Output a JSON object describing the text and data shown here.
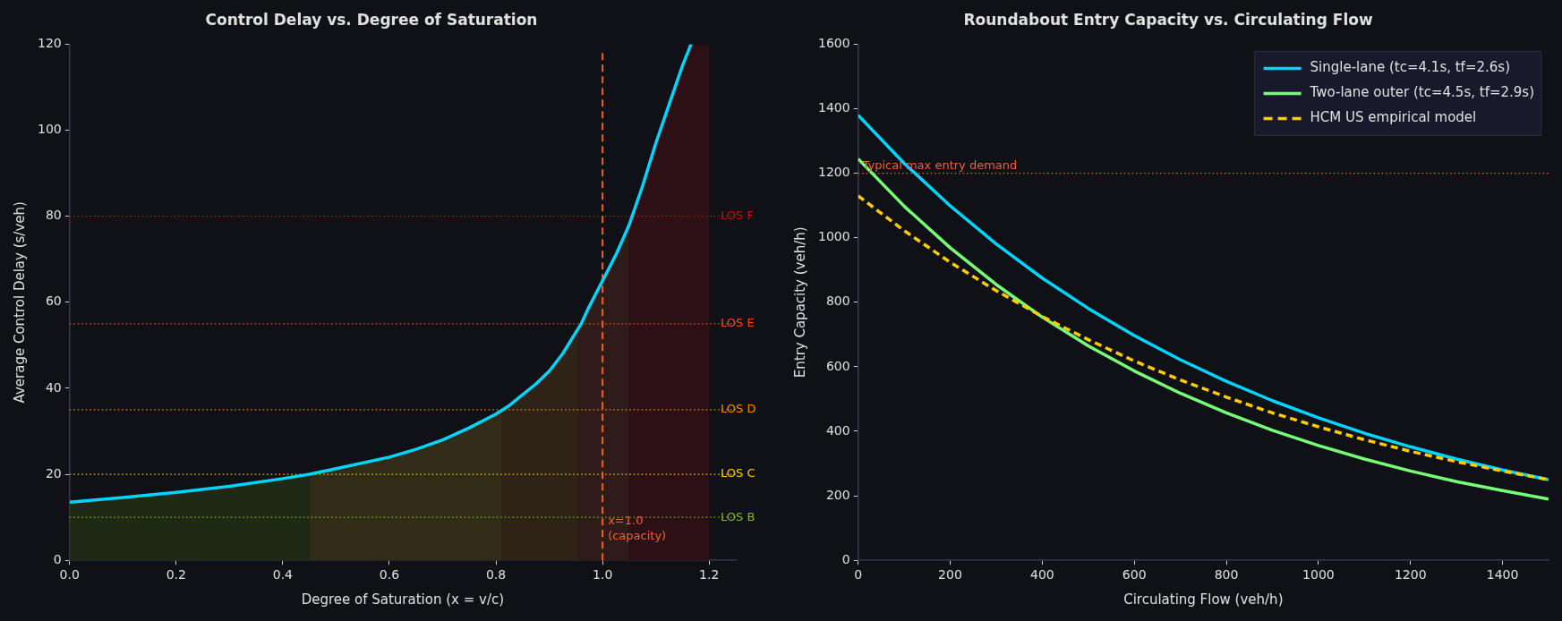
{
  "chart_data": [
    {
      "type": "line",
      "title": "Control Delay vs. Degree of Saturation",
      "xlabel": "Degree of Saturation (x = v/c)",
      "ylabel": "Average Control Delay (s/veh)",
      "x": [
        0,
        0.1,
        0.2,
        0.3,
        0.4,
        0.45,
        0.5,
        0.6,
        0.65,
        0.7,
        0.75,
        0.8,
        0.825,
        0.85,
        0.875,
        0.9,
        0.925,
        0.95,
        0.96,
        0.975,
        1.0,
        1.025,
        1.05,
        1.075,
        1.1,
        1.125,
        1.15,
        1.166
      ],
      "series": [
        {
          "color": "#00d4ff",
          "values": [
            13.5,
            14.6,
            15.8,
            17.2,
            19,
            20,
            21.3,
            24,
            25.8,
            28,
            30.8,
            34,
            36,
            38.5,
            41,
            44,
            48,
            53,
            55,
            59,
            65,
            71,
            78,
            87,
            97,
            106,
            115,
            120
          ]
        }
      ],
      "xlim": [
        0,
        1.25
      ],
      "ylim": [
        0,
        120
      ],
      "xticks": [
        {
          "value": 0,
          "label": "0.0"
        },
        {
          "value": 0.2,
          "label": "0.2"
        },
        {
          "value": 0.4,
          "label": "0.4"
        },
        {
          "value": 0.6,
          "label": "0.6"
        },
        {
          "value": 0.8,
          "label": "0.8"
        },
        {
          "value": 1.0,
          "label": "1.0"
        },
        {
          "value": 1.2,
          "label": "1.2"
        }
      ],
      "yticks": [
        0,
        20,
        40,
        60,
        80,
        100,
        120
      ],
      "bands": [
        {
          "axis": "x",
          "from": 0,
          "to": 0.45,
          "color": "#1f2a16"
        },
        {
          "axis": "x",
          "from": 0.45,
          "to": 0.81,
          "color": "#302c18"
        },
        {
          "axis": "x",
          "from": 0.81,
          "to": 0.955,
          "color": "#2f2318"
        },
        {
          "axis": "x",
          "from": 0.955,
          "to": 1.05,
          "color": "#2f1c18"
        },
        {
          "axis": "x",
          "from": 1.05,
          "to": 1.2,
          "color": "#2c1016"
        }
      ],
      "ref_lines": [
        {
          "axis": "y",
          "value": 80,
          "label": "LOS F",
          "color": "#cc1010",
          "line_style": "dotted"
        },
        {
          "axis": "y",
          "value": 55,
          "label": "LOS E",
          "color": "#ff4a1a",
          "line_style": "dotted"
        },
        {
          "axis": "y",
          "value": 35,
          "label": "LOS D",
          "color": "#ff8c00",
          "line_style": "dotted"
        },
        {
          "axis": "y",
          "value": 20,
          "label": "LOS C",
          "color": "#ffd000",
          "line_style": "dotted"
        },
        {
          "axis": "y",
          "value": 10,
          "label": "LOS B",
          "color": "#7fc000",
          "line_style": "dotted"
        },
        {
          "axis": "x",
          "value": 1.0,
          "label": "x=1.0\n(capacity)",
          "color": "#e8643a",
          "line_style": "dashed"
        }
      ],
      "grid": false,
      "legend": false,
      "marker": "none"
    },
    {
      "type": "line",
      "title": "Roundabout Entry Capacity vs. Circulating Flow",
      "xlabel": "Circulating Flow (veh/h)",
      "ylabel": "Entry Capacity (veh/h)",
      "x": [
        0,
        100,
        200,
        300,
        400,
        500,
        600,
        700,
        800,
        900,
        1000,
        1100,
        1200,
        1300,
        1400,
        1500
      ],
      "series": [
        {
          "name": "Single-lane (tc=4.1s, tf=2.6s)",
          "color": "#00d4ff",
          "values": [
            1380,
            1231,
            1099,
            981,
            875,
            781,
            697,
            622,
            555,
            495,
            442,
            394,
            352,
            314,
            280,
            250
          ]
        },
        {
          "name": "Two-lane outer (tc=4.5s, tf=2.9s)",
          "color": "#77ff77",
          "values": [
            1245,
            1098,
            969,
            855,
            754,
            665,
            587,
            518,
            457,
            403,
            356,
            314,
            277,
            244,
            216,
            190
          ]
        },
        {
          "name": "HCM US empirical model",
          "color": "#ffcc00",
          "line_style": "dashed",
          "values": [
            1130,
            1022,
            924,
            836,
            756,
            684,
            618,
            559,
            506,
            457,
            414,
            374,
            338,
            306,
            277,
            250
          ]
        }
      ],
      "xlim": [
        0,
        1500
      ],
      "ylim": [
        0,
        1600
      ],
      "xticks": [
        0,
        200,
        400,
        600,
        800,
        1000,
        1200,
        1400
      ],
      "yticks": [
        0,
        200,
        400,
        600,
        800,
        1000,
        1200,
        1400,
        1600
      ],
      "ref_lines": [
        {
          "axis": "y",
          "value": 1200,
          "label": "Typical max entry demand",
          "color": "#e8643a",
          "line_style": "dotted"
        }
      ],
      "grid": false,
      "legend": "top right",
      "marker": "none"
    }
  ]
}
